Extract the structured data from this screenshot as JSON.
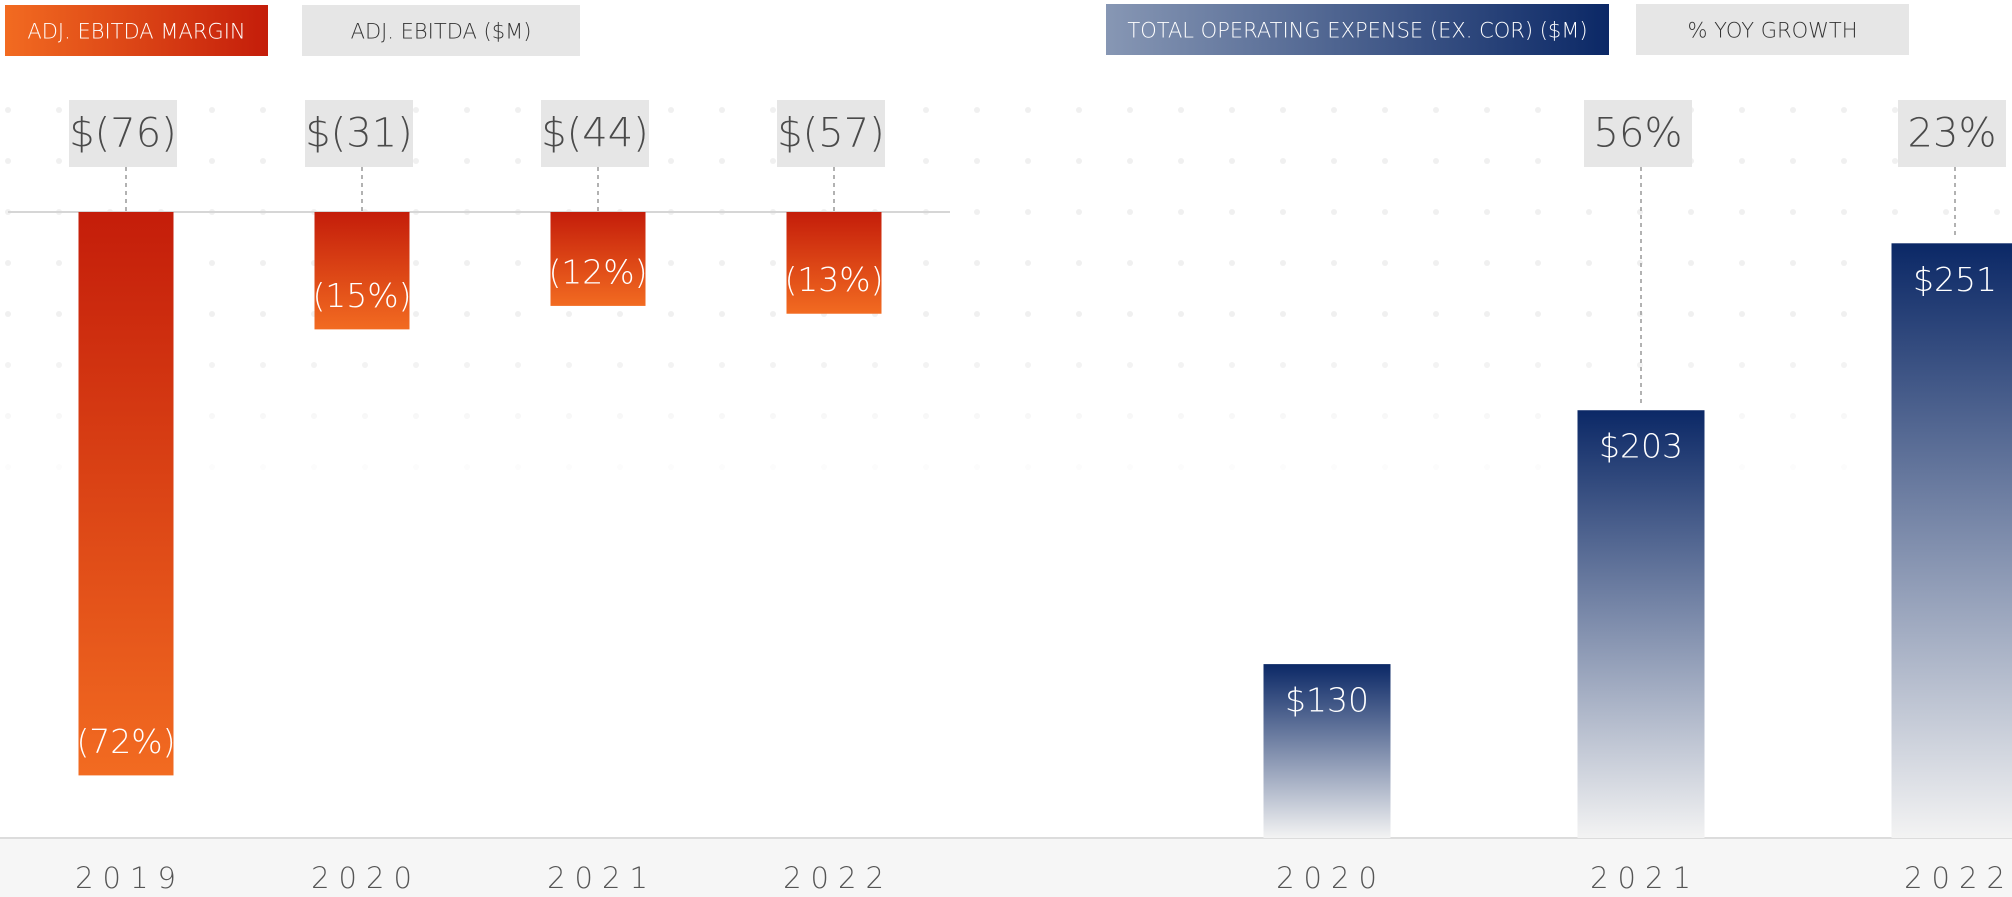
{
  "chart_data": [
    {
      "type": "bar",
      "categories": [
        "2019",
        "2020",
        "2021",
        "2022"
      ],
      "ylim": [
        -80,
        0
      ],
      "series": [
        {
          "name": "ADJ. EBITDA MARGIN",
          "color": [
            "#c41d0a",
            "#f26b21"
          ],
          "values": [
            -72,
            -15,
            -12,
            -13
          ],
          "value_labels": [
            "(72%)",
            "(15%)",
            "(12%)",
            "(13%)"
          ]
        },
        {
          "name": "ADJ. EBITDA ($M)",
          "color": "#e6e6e6",
          "values": [
            -76,
            -31,
            -44,
            -57
          ],
          "value_labels": [
            "$(76)",
            "$(31)",
            "$(44)",
            "$(57)"
          ]
        }
      ]
    },
    {
      "type": "bar",
      "categories": [
        "2020",
        "2021",
        "2022"
      ],
      "ylim": [
        80,
        260
      ],
      "series": [
        {
          "name": "TOTAL OPERATING EXPENSE (EX. COR) ($M)",
          "color": [
            "#0b2866",
            "#f3f3f3"
          ],
          "values": [
            130,
            203,
            251
          ],
          "value_labels": [
            "$130",
            "$203",
            "$251"
          ]
        },
        {
          "name": "% YOY GROWTH",
          "color": "#e6e6e6",
          "values": [
            null,
            56,
            23
          ],
          "value_labels": [
            null,
            "56%",
            "23%"
          ]
        }
      ]
    }
  ]
}
